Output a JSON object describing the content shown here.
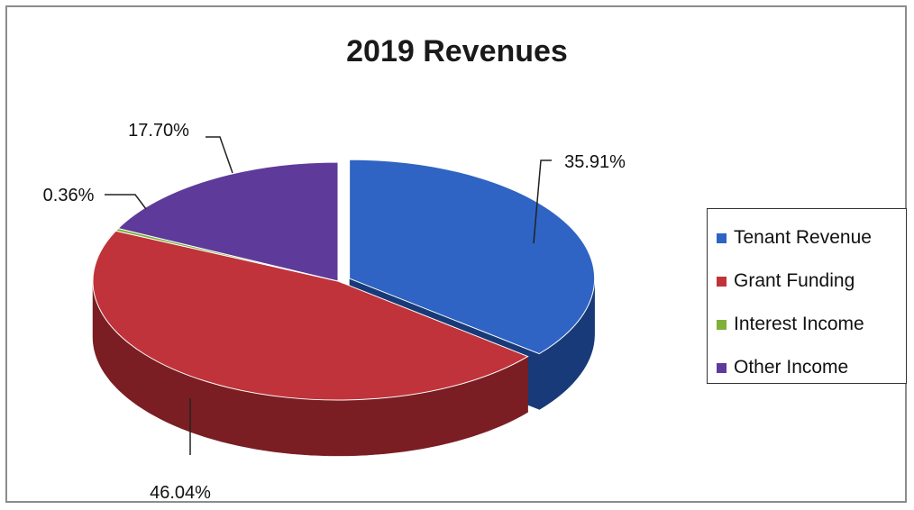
{
  "chart_data": {
    "type": "pie",
    "title": "2019 Revenues",
    "three_d": true,
    "exploded_slice": "Tenant Revenue",
    "legend_position": "right",
    "categories": [
      "Tenant Revenue",
      "Grant Funding",
      "Interest Income",
      "Other Income"
    ],
    "values": [
      35.91,
      46.04,
      0.36,
      17.7
    ],
    "labels": [
      "35.91%",
      "46.04%",
      "0.36%",
      "17.70%"
    ],
    "colors": [
      "#2f64c4",
      "#c0333a",
      "#7fb03a",
      "#5e3b9a"
    ],
    "dark_colors": [
      "#183a78",
      "#7a1e23",
      "#3f5a18",
      "#33205a"
    ]
  }
}
